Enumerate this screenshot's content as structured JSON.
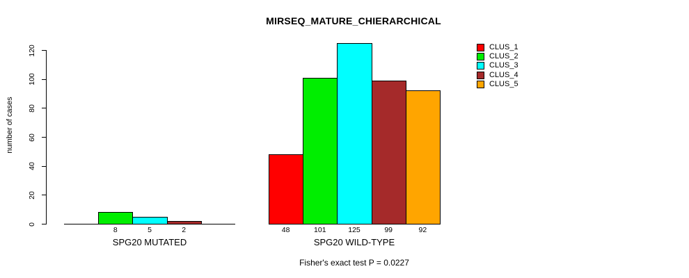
{
  "chart_data": {
    "type": "bar",
    "title": "MIRSEQ_MATURE_CHIERARCHICAL",
    "ylabel": "number of cases",
    "xlabel": "",
    "yticks": [
      0,
      20,
      40,
      60,
      80,
      100,
      120
    ],
    "ylim": [
      0,
      125
    ],
    "grid": false,
    "legend_position": "right",
    "clusters": [
      {
        "name": "CLUS_1",
        "color": "#ff0000"
      },
      {
        "name": "CLUS_2",
        "color": "#00ee00"
      },
      {
        "name": "CLUS_3",
        "color": "#00ffff"
      },
      {
        "name": "CLUS_4",
        "color": "#a52a2a"
      },
      {
        "name": "CLUS_5",
        "color": "#ffa500"
      }
    ],
    "groups": [
      {
        "label": "SPG20 MUTATED",
        "bars": [
          {
            "cluster": "CLUS_2",
            "value": 8,
            "slot": 1
          },
          {
            "cluster": "CLUS_3",
            "value": 5,
            "slot": 2
          },
          {
            "cluster": "CLUS_4",
            "value": 2,
            "slot": 3
          }
        ]
      },
      {
        "label": "SPG20 WILD-TYPE",
        "bars": [
          {
            "cluster": "CLUS_1",
            "value": 48,
            "slot": 0
          },
          {
            "cluster": "CLUS_2",
            "value": 101,
            "slot": 1
          },
          {
            "cluster": "CLUS_3",
            "value": 125,
            "slot": 2
          },
          {
            "cluster": "CLUS_4",
            "value": 99,
            "slot": 3
          },
          {
            "cluster": "CLUS_5",
            "value": 92,
            "slot": 4
          }
        ]
      }
    ],
    "footnote": "Fisher's exact test P = 0.0227"
  }
}
